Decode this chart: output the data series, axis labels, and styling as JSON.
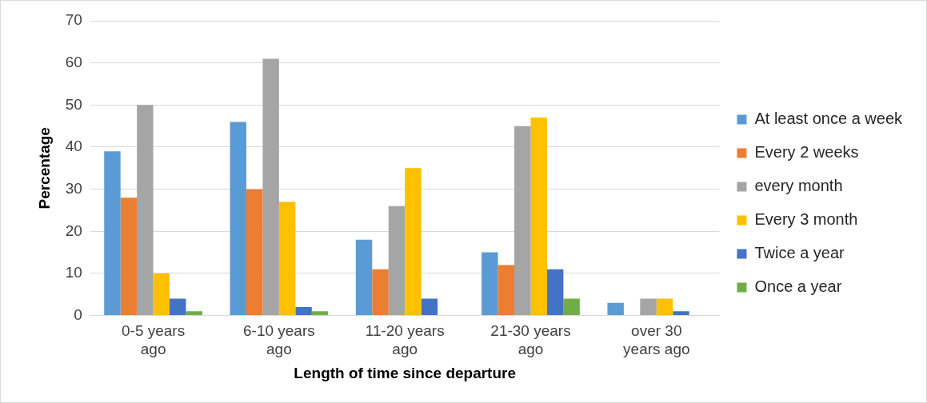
{
  "chart_data": {
    "type": "bar",
    "xlabel": "Length of time since departure",
    "ylabel": "Percentage",
    "categories": [
      "0-5 years ago",
      "6-10 years ago",
      "11-20 years ago",
      "21-30 years ago",
      "over 30 years ago"
    ],
    "series": [
      {
        "name": "At least once a week",
        "color": "#5b9bd5",
        "values": [
          39,
          46,
          18,
          15,
          3
        ]
      },
      {
        "name": "Every 2 weeks",
        "color": "#ed7d31",
        "values": [
          28,
          30,
          11,
          12,
          0
        ]
      },
      {
        "name": "every month",
        "color": "#a5a5a5",
        "values": [
          50,
          61,
          26,
          45,
          4
        ]
      },
      {
        "name": "Every 3 month",
        "color": "#ffc000",
        "values": [
          10,
          27,
          35,
          47,
          4
        ]
      },
      {
        "name": "Twice a year",
        "color": "#4472c4",
        "values": [
          4,
          2,
          4,
          11,
          1
        ]
      },
      {
        "name": "Once a year",
        "color": "#70ad47",
        "values": [
          1,
          1,
          0,
          4,
          0
        ]
      }
    ],
    "ylim": [
      0,
      70
    ],
    "yticks": [
      0,
      10,
      20,
      30,
      40,
      50,
      60,
      70
    ],
    "grid": "y",
    "legend": "right"
  }
}
